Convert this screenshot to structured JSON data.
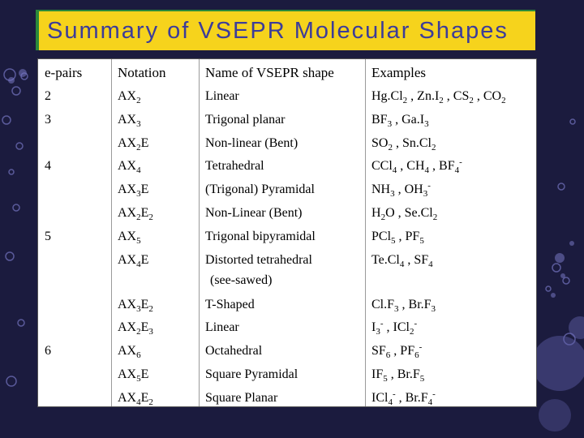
{
  "title": "Summary of VSEPR Molecular Shapes",
  "headers": {
    "epairs": "e-pairs",
    "notation": "Notation",
    "name": "Name of VSEPR shape",
    "examples": "Examples"
  },
  "rows": [
    {
      "epairs": "2",
      "notation": "AX<sub>2</sub>",
      "name": "Linear",
      "examples": "Hg.Cl<sub>2</sub> , Zn.I<sub>2</sub> , CS<sub>2</sub> , CO<sub>2</sub>"
    },
    {
      "epairs": "3",
      "notation": "AX<sub>3</sub>",
      "name": "Trigonal planar",
      "examples": "BF<sub>3</sub> , Ga.I<sub>3</sub>"
    },
    {
      "epairs": "",
      "notation": "AX<sub>2</sub>E",
      "name": "Non-linear (Bent)",
      "examples": "SO<sub>2</sub> , Sn.Cl<sub>2</sub>"
    },
    {
      "epairs": "4",
      "notation": "AX<sub>4</sub>",
      "name": "Tetrahedral",
      "examples": "CCl<sub>4</sub> , CH<sub>4</sub> , BF<sub>4</sub><sup>-</sup>"
    },
    {
      "epairs": "",
      "notation": "AX<sub>3</sub>E",
      "name": "(Trigonal) Pyramidal",
      "examples": "NH<sub>3</sub> , OH<sub>3</sub><sup>-</sup>"
    },
    {
      "epairs": "",
      "notation": "AX<sub>2</sub>E<sub>2</sub>",
      "name": "Non-Linear (Bent)",
      "examples": "H<sub>2</sub>O , Se.Cl<sub>2</sub>"
    },
    {
      "epairs": "5",
      "notation": "AX<sub>5</sub>",
      "name": "Trigonal bipyramidal",
      "examples": "PCl<sub>5</sub> , PF<sub>5</sub>"
    },
    {
      "epairs": "",
      "notation": "AX<sub>4</sub>E",
      "name": "Distorted tetrahedral",
      "name2": "(see-sawed)",
      "examples": "Te.Cl<sub>4</sub> , SF<sub>4</sub>"
    },
    {
      "epairs": "",
      "notation": "AX<sub>3</sub>E<sub>2</sub>",
      "name": "T-Shaped",
      "examples": "Cl.F<sub>3</sub> , Br.F<sub>3</sub>"
    },
    {
      "epairs": "",
      "notation": "AX<sub>2</sub>E<sub>3</sub>",
      "name": "Linear",
      "examples": "I<sub>3</sub><sup>-</sup> , ICl<sub>2</sub><sup>-</sup>"
    },
    {
      "epairs": "6",
      "notation": "AX<sub>6</sub>",
      "name": "Octahedral",
      "examples": "SF<sub>6</sub> , PF<sub>6</sub><sup>-</sup>"
    },
    {
      "epairs": "",
      "notation": "AX<sub>5</sub>E",
      "name": "Square Pyramidal",
      "examples": "IF<sub>5</sub> , Br.F<sub>5</sub>"
    },
    {
      "epairs": "",
      "notation": "AX<sub>4</sub>E<sub>2</sub>",
      "name": "Square Planar",
      "examples": "ICl<sub>4</sub><sup>-</sup> , Br.F<sub>4</sub><sup>-</sup>"
    }
  ]
}
